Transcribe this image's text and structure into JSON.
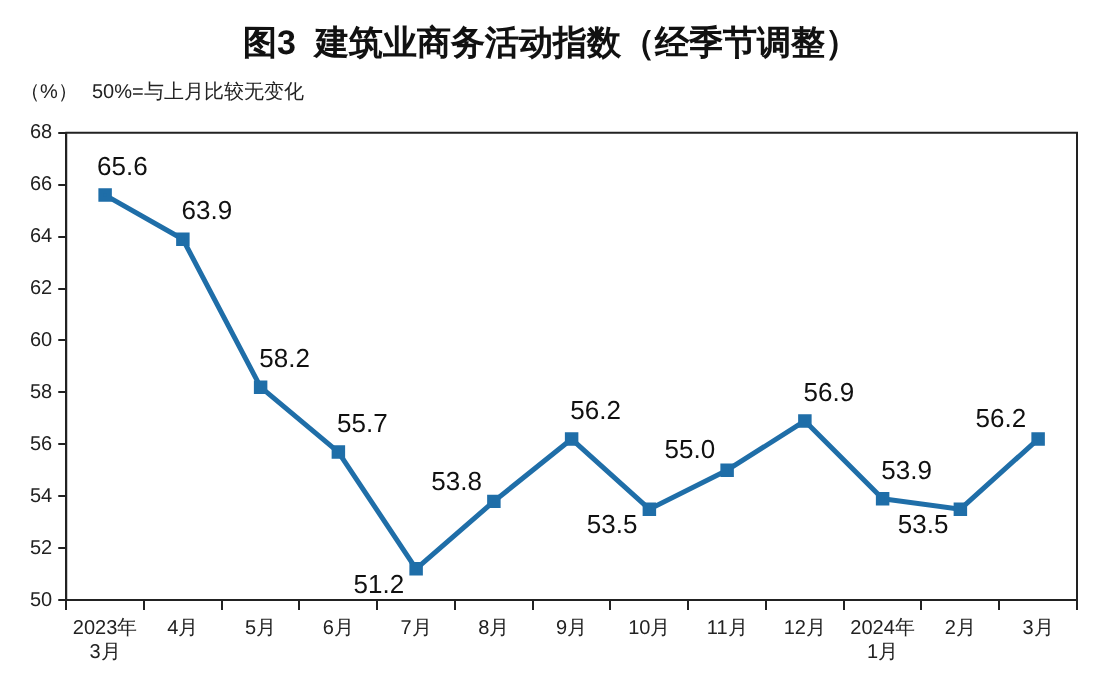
{
  "chart_data": {
    "type": "line",
    "title": "图3  建筑业商务活动指数（经季节调整）",
    "ylabel": "（%）",
    "annotations": [
      "50%=与上月比较无变化"
    ],
    "categories": [
      "2023年\n3月",
      "4月",
      "5月",
      "6月",
      "7月",
      "8月",
      "9月",
      "10月",
      "11月",
      "12月",
      "2024年\n1月",
      "2月",
      "3月"
    ],
    "series": [
      {
        "color": "#1f6ea8",
        "values": [
          65.6,
          63.9,
          58.2,
          55.7,
          51.2,
          53.8,
          56.2,
          53.5,
          55.0,
          56.9,
          53.9,
          53.5,
          56.2
        ],
        "value_labels": [
          "65.6",
          "63.9",
          "58.2",
          "55.7",
          "51.2",
          "53.8",
          "56.2",
          "53.5",
          "55.0",
          "56.9",
          "53.9",
          "53.5",
          "56.2"
        ]
      }
    ],
    "ylim": [
      50,
      68
    ],
    "yticks": [
      50,
      52,
      54,
      56,
      58,
      60,
      62,
      64,
      66,
      68
    ],
    "grid": false,
    "legend": false,
    "marker": "square",
    "line_style": "solid"
  }
}
